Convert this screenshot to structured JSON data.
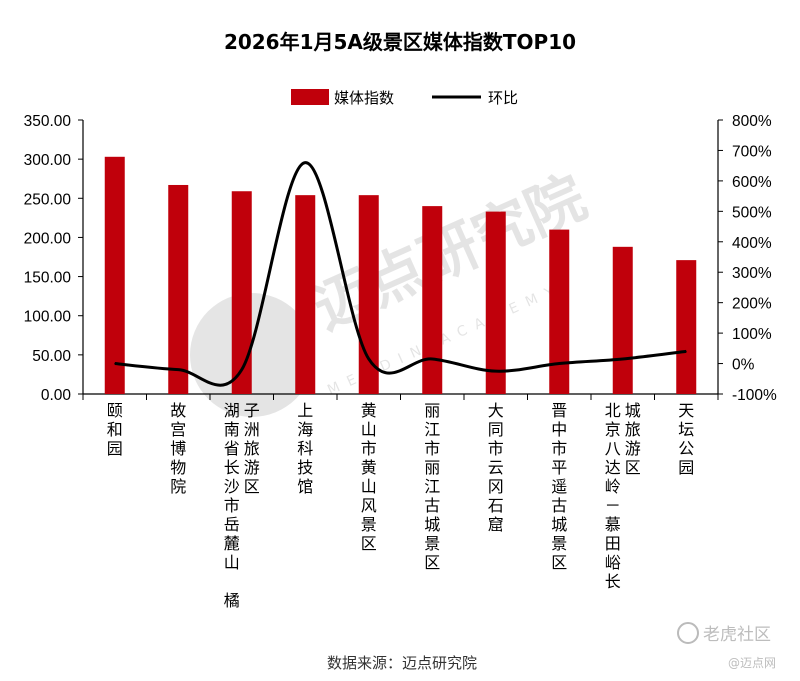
{
  "chart_data": {
    "type": "bar",
    "title": "2026年1月5A级景区媒体指数TOP10",
    "categories": [
      [
        "颐和园"
      ],
      [
        "故宫博物院"
      ],
      [
        "湖南省长沙市岳麓山 橘",
        "子洲旅游区"
      ],
      [
        "上海科技馆"
      ],
      [
        "黄山市黄山风景区"
      ],
      [
        "丽江市丽江古城景区"
      ],
      [
        "大同市云冈石窟"
      ],
      [
        "晋中市平遥古城景区"
      ],
      [
        "北京八达岭－慕田峪长",
        "城旅游区"
      ],
      [
        "天坛公园"
      ]
    ],
    "series": [
      {
        "name": "媒体指数",
        "type": "bar",
        "axis": "left",
        "color": "#C0000B",
        "values": [
          303,
          267,
          259,
          254,
          254,
          240,
          233,
          210,
          188,
          171
        ]
      },
      {
        "name": "环比",
        "type": "line",
        "axis": "right",
        "color": "#000000",
        "values": [
          0,
          -20,
          -20,
          660,
          15,
          15,
          -25,
          0,
          15,
          40
        ]
      }
    ],
    "y_left": {
      "range": [
        0,
        350
      ],
      "ticks": [
        "0.00",
        "50.00",
        "100.00",
        "150.00",
        "200.00",
        "250.00",
        "300.00",
        "350.00"
      ]
    },
    "y_right": {
      "range": [
        -100,
        800
      ],
      "ticks": [
        "-100%",
        "0%",
        "100%",
        "200%",
        "300%",
        "400%",
        "500%",
        "600%",
        "700%",
        "800%"
      ]
    },
    "legend_position": "top-center",
    "grid": false
  },
  "source_note": "数据来源：迈点研究院",
  "watermarks": {
    "main": "迈点研究院",
    "sub": "MEADIN ACADEMY",
    "corner_brand": "老虎社区",
    "corner_small": "@迈点网"
  }
}
